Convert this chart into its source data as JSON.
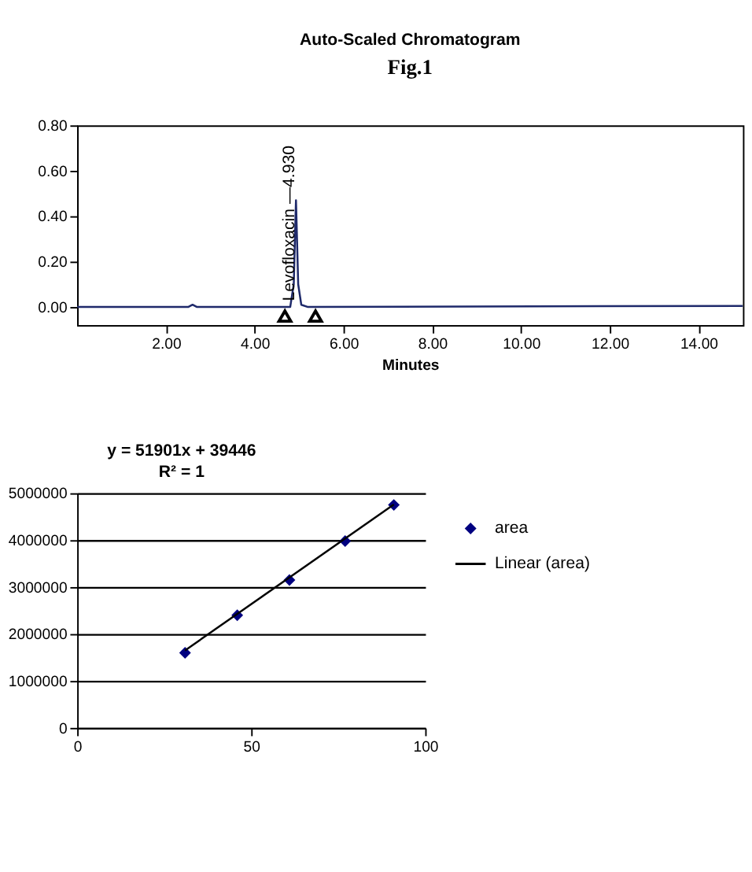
{
  "chart_data": [
    {
      "type": "line",
      "title": "Auto-Scaled Chromatogram",
      "xlabel": "Minutes",
      "xlim": [
        0,
        15
      ],
      "ylim": [
        -0.08,
        0.8
      ],
      "xticks": [
        {
          "value": 2,
          "label": "2.00"
        },
        {
          "value": 4,
          "label": "4.00"
        },
        {
          "value": 6,
          "label": "6.00"
        },
        {
          "value": 8,
          "label": "8.00"
        },
        {
          "value": 10,
          "label": "10.00"
        },
        {
          "value": 12,
          "label": "12.00"
        },
        {
          "value": 14,
          "label": "14.00"
        }
      ],
      "yticks": [
        {
          "value": 0,
          "label": "0.00"
        },
        {
          "value": 0.2,
          "label": "0.20"
        },
        {
          "value": 0.4,
          "label": "0.40"
        },
        {
          "value": 0.6,
          "label": "0.60"
        },
        {
          "value": 0.8,
          "label": "0.80"
        }
      ],
      "grid": false,
      "legend": false,
      "series": [
        {
          "color": "#1f2a6b",
          "marker": "none",
          "x": [
            0,
            2.5,
            2.6,
            2.7,
            3.4,
            4.8,
            4.88,
            4.93,
            4.98,
            5.05,
            5.2,
            15
          ],
          "values": [
            0,
            0,
            0.01,
            0,
            0,
            0,
            0.1,
            0.47,
            0.1,
            0.01,
            0,
            0.005
          ]
        },
        {
          "type": "scatter",
          "marker": "triangle",
          "color": "#000000",
          "x": [
            4.68,
            5.37
          ],
          "values": [
            -0.04,
            -0.04
          ]
        }
      ],
      "annotations": [
        "Fig.1",
        {
          "text": "Levofloxacin —4.930",
          "x": 4.93,
          "y": 0
        }
      ]
    },
    {
      "type": "scatter",
      "xlim": [
        0,
        100
      ],
      "ylim": [
        0,
        5000000
      ],
      "xticks": [
        0,
        50,
        100
      ],
      "yticks": [
        0,
        1000000,
        2000000,
        3000000,
        4000000,
        5000000
      ],
      "grid": "y",
      "legend": "right",
      "series": [
        {
          "name": "area",
          "color": "#000080",
          "marker": "diamond",
          "x": [
            31,
            46,
            61,
            77,
            91
          ],
          "values": [
            1600000,
            2400000,
            3150000,
            3980000,
            4750000
          ]
        },
        {
          "name": "Linear (area)",
          "type": "line",
          "color": "#000000",
          "x": [
            31,
            91
          ],
          "values": [
            1650000,
            4760000
          ]
        }
      ],
      "annotations": [
        "y = 51901x + 39446",
        "R² = 1"
      ]
    }
  ]
}
